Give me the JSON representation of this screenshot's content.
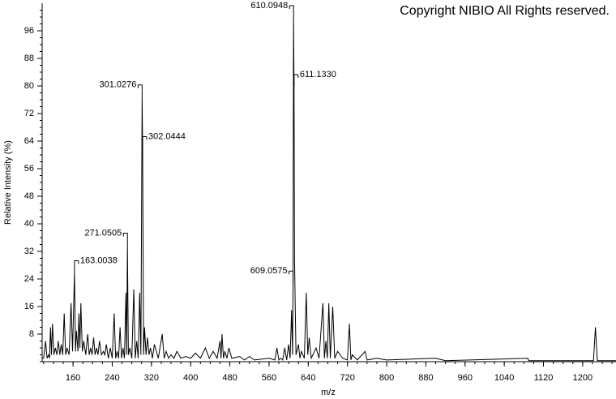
{
  "chart_data": {
    "type": "line",
    "copyright": "Copyright NIBIO All Rights reserved.",
    "xlabel": "m/z",
    "ylabel": "Relative Intensity (%)",
    "xlim": [
      97,
      1268
    ],
    "ylim": [
      0,
      104
    ],
    "xticks": [
      160,
      240,
      320,
      400,
      480,
      560,
      640,
      720,
      800,
      880,
      960,
      1040,
      1120,
      1200
    ],
    "yticks": [
      8,
      16,
      24,
      32,
      40,
      48,
      56,
      64,
      72,
      80,
      88,
      96
    ],
    "color": "#000000",
    "x": [
      97,
      100,
      104,
      107,
      110,
      112,
      114,
      116,
      118,
      121,
      124,
      127,
      130,
      133,
      136,
      139,
      142,
      145,
      148,
      152,
      156,
      159,
      163,
      165,
      167,
      170,
      172,
      174,
      176,
      179,
      182,
      186,
      190,
      193,
      196,
      199,
      202,
      205,
      208,
      211,
      214,
      218,
      222,
      225,
      228,
      232,
      236,
      240,
      244,
      247,
      250,
      253,
      256,
      259,
      262,
      265,
      268,
      269.5,
      271,
      273,
      276,
      280,
      284,
      287,
      290,
      293,
      296,
      298.5,
      301,
      302,
      304,
      306,
      309,
      312,
      315,
      318,
      322,
      326,
      334,
      342,
      346,
      350,
      355,
      360,
      366,
      372,
      380,
      390,
      400,
      410,
      420,
      430,
      438,
      446,
      454,
      460,
      462,
      464,
      467,
      470,
      474,
      478,
      484,
      500,
      510,
      520,
      530,
      560,
      572,
      576,
      580,
      584,
      588,
      592,
      596,
      600,
      603,
      606,
      608,
      609,
      610,
      611,
      612,
      613,
      615,
      620,
      623,
      626,
      632,
      636,
      639,
      642,
      646,
      656,
      662,
      670,
      673,
      676,
      679,
      682,
      685,
      690,
      694,
      700,
      710,
      720,
      724,
      727,
      730,
      740,
      756,
      760,
      780,
      800,
      900,
      920,
      1088,
      1090,
      1222,
      1226,
      1230,
      1268
    ],
    "values": [
      1,
      1,
      6,
      1,
      2,
      1,
      10,
      2,
      11,
      2,
      4,
      2,
      6,
      2,
      5,
      2,
      14,
      2,
      4,
      2,
      17,
      3,
      26,
      3,
      9,
      3,
      14,
      4,
      17,
      3,
      6,
      2,
      8,
      2,
      4,
      2,
      7,
      2,
      4,
      2,
      6,
      2,
      3,
      2,
      5,
      1,
      4,
      1,
      14,
      1,
      3,
      1,
      10,
      1,
      4,
      1,
      20,
      2,
      34,
      2,
      4,
      1,
      21,
      1,
      6,
      1,
      20,
      2,
      77,
      62,
      2,
      10,
      2,
      7,
      2,
      4,
      1,
      5,
      1,
      8,
      1,
      3,
      1,
      2,
      1,
      3,
      1,
      1.5,
      1,
      2.5,
      1,
      4,
      1,
      3,
      1,
      6,
      1,
      8,
      1,
      3,
      1,
      4,
      1,
      1.5,
      0.5,
      1.5,
      0.5,
      1,
      0.5,
      4,
      0.5,
      1,
      0.5,
      4,
      0.5,
      5,
      1,
      15,
      2,
      23,
      100,
      80,
      30,
      20,
      2,
      5,
      1,
      3,
      1,
      20,
      2,
      7,
      1,
      4,
      1,
      17,
      1,
      6,
      1,
      17,
      1,
      16,
      1,
      3,
      1,
      0.5,
      11,
      0.5,
      2,
      0.5,
      3,
      0.5,
      1,
      0.5,
      1,
      0.3,
      1,
      0.3,
      0.3,
      10,
      0.3,
      0.3
    ],
    "annotations": [
      {
        "x": 163.0038,
        "y": 26,
        "label": "163.0038",
        "side": "right"
      },
      {
        "x": 271.0505,
        "y": 34,
        "label": "271.0505",
        "side": "left"
      },
      {
        "x": 301.0276,
        "y": 77,
        "label": "301.0276",
        "side": "left"
      },
      {
        "x": 302.0444,
        "y": 62,
        "label": "302.0444",
        "side": "right"
      },
      {
        "x": 609.0575,
        "y": 23,
        "label": "609.0575",
        "side": "left"
      },
      {
        "x": 610.0948,
        "y": 100,
        "label": "610.0948",
        "side": "left"
      },
      {
        "x": 611.133,
        "y": 80,
        "label": "611.1330",
        "side": "right"
      }
    ]
  }
}
